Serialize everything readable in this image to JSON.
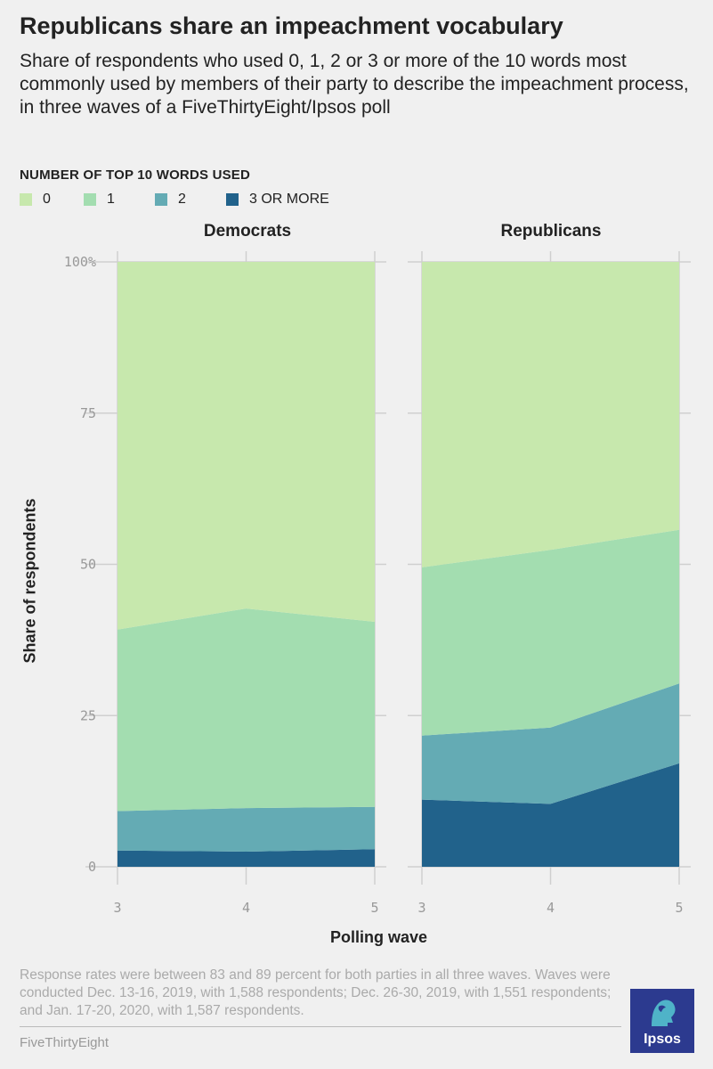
{
  "title": "Republicans share an impeachment vocabulary",
  "subtitle": "Share of respondents who used 0, 1, 2 or 3 or more of the 10 words most commonly used by members of their party to describe the impeachment process, in three waves of a FiveThirtyEight/Ipsos poll",
  "legend": {
    "title": "NUMBER OF TOP 10 WORDS USED",
    "items": [
      {
        "label": "0",
        "color": "#c7e8ad"
      },
      {
        "label": "1",
        "color": "#a3ddb0"
      },
      {
        "label": "2",
        "color": "#64abb4"
      },
      {
        "label": "3 OR MORE",
        "color": "#21628b"
      }
    ]
  },
  "chart_data": [
    {
      "type": "area",
      "stacked": true,
      "title": "Democrats",
      "x": [
        3,
        4,
        5
      ],
      "xlabel": "Polling wave",
      "ylabel": "Share of respondents",
      "ylim": [
        0,
        100
      ],
      "yticks": [
        "0",
        "25",
        "50",
        "75",
        "100%"
      ],
      "series": [
        {
          "name": "3 OR MORE",
          "values": [
            2.7,
            2.5,
            2.9
          ]
        },
        {
          "name": "2",
          "values": [
            6.5,
            7.2,
            7.0
          ]
        },
        {
          "name": "1",
          "values": [
            30.0,
            33.0,
            30.6
          ]
        },
        {
          "name": "0",
          "values": [
            60.8,
            57.3,
            59.5
          ]
        }
      ]
    },
    {
      "type": "area",
      "stacked": true,
      "title": "Republicans",
      "x": [
        3,
        4,
        5
      ],
      "xlabel": "Polling wave",
      "ylabel": "Share of respondents",
      "ylim": [
        0,
        100
      ],
      "yticks": [
        "0",
        "25",
        "50",
        "75",
        "100%"
      ],
      "series": [
        {
          "name": "3 OR MORE",
          "values": [
            11.1,
            10.4,
            17.1
          ]
        },
        {
          "name": "2",
          "values": [
            10.6,
            12.6,
            13.2
          ]
        },
        {
          "name": "1",
          "values": [
            27.8,
            29.4,
            25.4
          ]
        },
        {
          "name": "0",
          "values": [
            50.5,
            47.6,
            44.3
          ]
        }
      ]
    }
  ],
  "note": "Response rates were between 83 and 89 percent for both parties in all three waves. Waves were conducted Dec. 13-16, 2019, with 1,588 respondents; Dec. 26-30, 2019, with 1,551 respondents; and Jan. 17-20, 2020, with 1,587 respondents.",
  "source": "FiveThirtyEight",
  "logo_text": "Ipsos"
}
